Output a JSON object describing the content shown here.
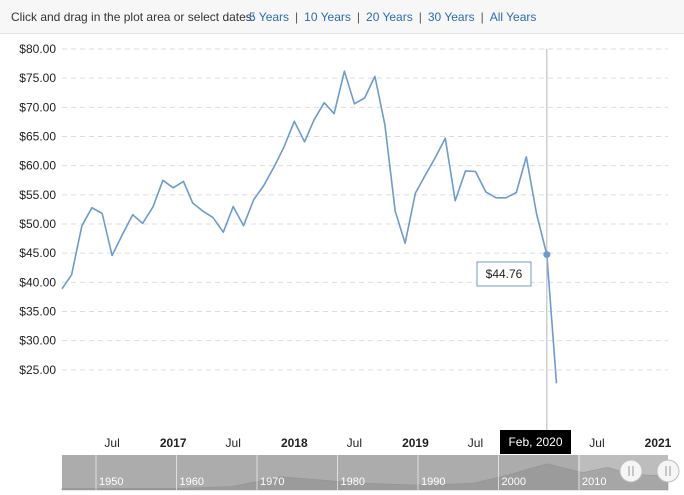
{
  "range_selector": {
    "prompt": "Click and drag in the plot area or select dates:",
    "options": [
      "5 Years",
      "10 Years",
      "20 Years",
      "30 Years",
      "All Years"
    ]
  },
  "tooltip": {
    "value": "$44.76",
    "date": "Feb, 2020"
  },
  "navigator": {
    "decades": [
      "1950",
      "1960",
      "1970",
      "1980",
      "1990",
      "2000",
      "2010"
    ]
  },
  "colors": {
    "line": "#6b9bd1",
    "navigator_bg": "#bdbdbd",
    "link": "#2b6cb0"
  },
  "chart_data": {
    "type": "line",
    "ylim": [
      20,
      80
    ],
    "y_ticks": [
      25,
      30,
      35,
      40,
      45,
      50,
      55,
      60,
      65,
      70,
      75,
      80
    ],
    "y_tick_labels": [
      "$25.00",
      "$30.00",
      "$35.00",
      "$40.00",
      "$45.00",
      "$50.00",
      "$55.00",
      "$60.00",
      "$65.00",
      "$70.00",
      "$75.00",
      "$80.00"
    ],
    "x_ticks": [
      {
        "label": "Jul",
        "date": "2016-07-01",
        "major": false
      },
      {
        "label": "2017",
        "date": "2017-01-01",
        "major": true
      },
      {
        "label": "Jul",
        "date": "2017-07-01",
        "major": false
      },
      {
        "label": "2018",
        "date": "2018-01-01",
        "major": true
      },
      {
        "label": "Jul",
        "date": "2018-07-01",
        "major": false
      },
      {
        "label": "2019",
        "date": "2019-01-01",
        "major": true
      },
      {
        "label": "Jul",
        "date": "2019-07-01",
        "major": false
      },
      {
        "label": "Jul",
        "date": "2020-07-01",
        "major": false
      },
      {
        "label": "2021",
        "date": "2021-01-01",
        "major": true
      }
    ],
    "series": [
      {
        "x": [
          "2016-02-01",
          "2016-03-01",
          "2016-04-01",
          "2016-05-01",
          "2016-06-01",
          "2016-07-01",
          "2016-08-01",
          "2016-09-01",
          "2016-10-01",
          "2016-11-01",
          "2016-12-01",
          "2017-01-01",
          "2017-02-01",
          "2017-03-01",
          "2017-04-01",
          "2017-05-01",
          "2017-06-01",
          "2017-07-01",
          "2017-08-01",
          "2017-09-01",
          "2017-10-01",
          "2017-11-01",
          "2017-12-01",
          "2018-01-01",
          "2018-02-01",
          "2018-03-01",
          "2018-04-01",
          "2018-05-01",
          "2018-06-01",
          "2018-07-01",
          "2018-08-01",
          "2018-09-01",
          "2018-10-01",
          "2018-11-01",
          "2018-12-01",
          "2019-01-01",
          "2019-02-01",
          "2019-03-01",
          "2019-04-01",
          "2019-05-01",
          "2019-06-01",
          "2019-07-01",
          "2019-08-01",
          "2019-09-01",
          "2019-10-01",
          "2019-11-01",
          "2019-12-01",
          "2020-01-01",
          "2020-02-01",
          "2020-03-01"
        ],
        "y": [
          38.9,
          41.3,
          49.7,
          52.8,
          51.8,
          44.6,
          48.2,
          51.6,
          50.1,
          52.9,
          57.5,
          56.2,
          57.3,
          53.6,
          52.2,
          51.1,
          48.6,
          53.0,
          49.7,
          54.2,
          56.6,
          59.8,
          63.2,
          67.6,
          64.1,
          67.8,
          70.8,
          68.9,
          76.2,
          70.6,
          71.6,
          75.3,
          67.0,
          52.2,
          46.7,
          55.3,
          58.5,
          61.3,
          64.7,
          54.0,
          59.1,
          59.0,
          55.5,
          54.5,
          54.5,
          55.4,
          61.5,
          51.8,
          44.76,
          22.7
        ]
      }
    ]
  }
}
